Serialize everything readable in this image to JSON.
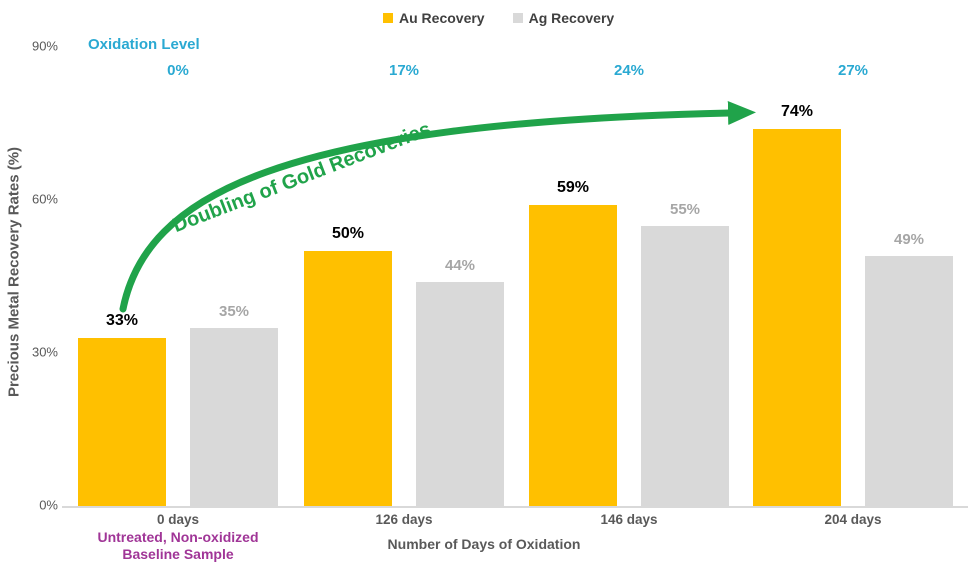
{
  "legend": [
    {
      "label": "Au Recovery",
      "color": "#FFC000"
    },
    {
      "label": "Ag Recovery",
      "color": "#D9D9D9"
    }
  ],
  "oxidation": {
    "title": "Oxidation Level",
    "values": [
      "0%",
      "17%",
      "24%",
      "27%"
    ],
    "color": "#2AA9D2"
  },
  "annotations": {
    "arrow_text": "Doubling of Gold Recoveries",
    "arrow_color": "#20A34A",
    "baseline_note_line1": "Untreated, Non-oxidized",
    "baseline_note_line2": "Baseline Sample",
    "note_color": "#A03597"
  },
  "chart_data": {
    "type": "bar",
    "categories": [
      "0 days",
      "126 days",
      "146 days",
      "204 days"
    ],
    "series": [
      {
        "name": "Au Recovery",
        "color": "#FFC000",
        "values": [
          33,
          50,
          59,
          74
        ],
        "labels": [
          "33%",
          "50%",
          "59%",
          "74%"
        ],
        "label_color": "#000000"
      },
      {
        "name": "Ag Recovery",
        "color": "#D9D9D9",
        "values": [
          35,
          44,
          55,
          49
        ],
        "labels": [
          "35%",
          "44%",
          "55%",
          "49%"
        ],
        "label_color": "#A6A6A6"
      }
    ],
    "xlabel": "Number of Days of Oxidation",
    "ylabel": "Precious Metal Recovery Rates (%)",
    "yticks": [
      0,
      30,
      60,
      90
    ],
    "ytick_labels": [
      "0%",
      "30%",
      "60%",
      "90%"
    ],
    "ylim": [
      0,
      90
    ],
    "grid": false,
    "legend_position": "top"
  }
}
